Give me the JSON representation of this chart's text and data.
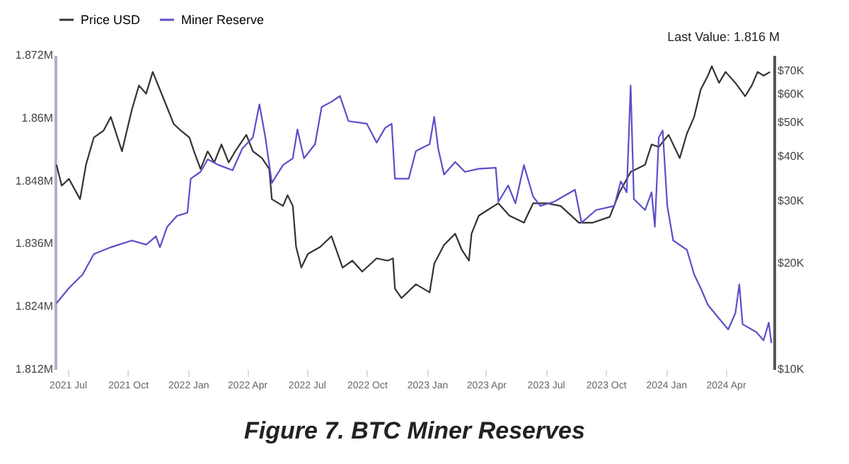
{
  "chart_data": {
    "type": "line",
    "title": "Figure 7. BTC Miner Reserves",
    "annotations": [
      "Last Value: 1.816 M"
    ],
    "legend": "top",
    "marker": "none",
    "line_style": "solid",
    "log": "y2",
    "xlim": [
      "2021-06-12",
      "2024-06-14"
    ],
    "xticks": [
      {
        "value": "2021-07-01",
        "label": "2021 Jul"
      },
      {
        "value": "2021-10-01",
        "label": "2021 Oct"
      },
      {
        "value": "2022-01-01",
        "label": "2022 Jan"
      },
      {
        "value": "2022-04-01",
        "label": "2022 Apr"
      },
      {
        "value": "2022-07-01",
        "label": "2022 Jul"
      },
      {
        "value": "2022-10-01",
        "label": "2022 Oct"
      },
      {
        "value": "2023-01-01",
        "label": "2023 Jan"
      },
      {
        "value": "2023-04-01",
        "label": "2023 Apr"
      },
      {
        "value": "2023-07-01",
        "label": "2023 Jul"
      },
      {
        "value": "2023-10-01",
        "label": "2023 Oct"
      },
      {
        "value": "2024-01-01",
        "label": "2024 Jan"
      },
      {
        "value": "2024-04-01",
        "label": "2024 Apr"
      }
    ],
    "ylim": [
      1.812,
      1.872
    ],
    "yticks": [
      {
        "value": 1.812,
        "label": "1.812M"
      },
      {
        "value": 1.824,
        "label": "1.824M"
      },
      {
        "value": 1.836,
        "label": "1.836M"
      },
      {
        "value": 1.848,
        "label": "1.848M"
      },
      {
        "value": 1.86,
        "label": "1.86M"
      },
      {
        "value": 1.872,
        "label": "1.872M"
      }
    ],
    "y2lim": [
      10000,
      77500
    ],
    "y2ticks": [
      {
        "value": 10000,
        "label": "$10K"
      },
      {
        "value": 20000,
        "label": "$20K"
      },
      {
        "value": 30000,
        "label": "$30K"
      },
      {
        "value": 40000,
        "label": "$40K"
      },
      {
        "value": 50000,
        "label": "$50K"
      },
      {
        "value": 60000,
        "label": "$60K"
      },
      {
        "value": 70000,
        "label": "$70K"
      }
    ],
    "series": [
      {
        "name": "Price USD",
        "color": "#333333",
        "axis": "y2",
        "x": [
          "2021-06-14",
          "2021-06-22",
          "2021-07-03",
          "2021-07-20",
          "2021-07-29",
          "2021-08-10",
          "2021-08-25",
          "2021-09-05",
          "2021-09-22",
          "2021-10-07",
          "2021-10-18",
          "2021-10-29",
          "2021-11-08",
          "2021-11-19",
          "2021-11-30",
          "2021-12-10",
          "2021-12-21",
          "2022-01-03",
          "2022-01-10",
          "2022-01-20",
          "2022-01-31",
          "2022-02-10",
          "2022-02-21",
          "2022-03-04",
          "2022-03-14",
          "2022-03-31",
          "2022-04-10",
          "2022-04-24",
          "2022-05-05",
          "2022-05-09",
          "2022-05-26",
          "2022-06-02",
          "2022-06-10",
          "2022-06-15",
          "2022-06-23",
          "2022-07-03",
          "2022-07-22",
          "2022-08-08",
          "2022-08-25",
          "2022-09-09",
          "2022-09-24",
          "2022-10-16",
          "2022-11-02",
          "2022-11-10",
          "2022-11-13",
          "2022-11-23",
          "2022-12-15",
          "2023-01-05",
          "2023-01-12",
          "2023-01-27",
          "2023-02-13",
          "2023-02-23",
          "2023-03-06",
          "2023-03-10",
          "2023-03-21",
          "2023-04-03",
          "2023-04-20",
          "2023-05-07",
          "2023-05-29",
          "2023-06-12",
          "2023-07-03",
          "2023-07-24",
          "2023-08-21",
          "2023-09-11",
          "2023-10-07",
          "2023-10-22",
          "2023-11-08",
          "2023-11-30",
          "2023-12-10",
          "2023-12-21",
          "2024-01-05",
          "2024-01-22",
          "2024-02-02",
          "2024-02-13",
          "2024-02-23",
          "2024-03-05",
          "2024-03-11",
          "2024-03-22",
          "2024-04-01",
          "2024-04-16",
          "2024-05-01",
          "2024-05-11",
          "2024-05-20",
          "2024-05-29",
          "2024-06-08"
        ],
        "values": [
          37900,
          33100,
          34600,
          30300,
          37900,
          45300,
          47400,
          51800,
          41400,
          54200,
          63600,
          60300,
          69500,
          61900,
          55100,
          49500,
          47400,
          45300,
          41400,
          36900,
          41400,
          38500,
          43300,
          38500,
          41400,
          46100,
          41400,
          39600,
          36900,
          30300,
          29000,
          31100,
          29000,
          22200,
          19400,
          21200,
          22200,
          23800,
          19400,
          20300,
          18900,
          20600,
          20300,
          20600,
          16900,
          15900,
          17400,
          16500,
          19900,
          22500,
          24200,
          21800,
          20300,
          24200,
          27200,
          28200,
          29500,
          27200,
          26000,
          29500,
          29500,
          29000,
          26000,
          26000,
          27000,
          31700,
          36200,
          37900,
          43300,
          42600,
          46100,
          39600,
          46500,
          51800,
          61900,
          67800,
          72100,
          64700,
          69500,
          64700,
          59300,
          63600,
          69500,
          67800,
          69500
        ]
      },
      {
        "name": "Miner Reserve",
        "color": "#5a50c8",
        "axis": "y",
        "x": [
          "2021-06-14",
          "2021-07-03",
          "2021-07-24",
          "2021-08-10",
          "2021-09-05",
          "2021-10-07",
          "2021-10-29",
          "2021-11-13",
          "2021-11-19",
          "2021-11-30",
          "2021-12-15",
          "2021-12-31",
          "2022-01-05",
          "2022-01-20",
          "2022-01-31",
          "2022-02-17",
          "2022-03-10",
          "2022-03-25",
          "2022-04-10",
          "2022-04-20",
          "2022-04-29",
          "2022-05-09",
          "2022-05-26",
          "2022-06-10",
          "2022-06-17",
          "2022-06-27",
          "2022-07-14",
          "2022-07-24",
          "2022-08-08",
          "2022-08-21",
          "2022-09-03",
          "2022-10-01",
          "2022-10-16",
          "2022-10-29",
          "2022-11-08",
          "2022-11-13",
          "2022-12-04",
          "2022-12-15",
          "2023-01-05",
          "2023-01-12",
          "2023-01-18",
          "2023-01-27",
          "2023-02-13",
          "2023-02-28",
          "2023-03-21",
          "2023-04-16",
          "2023-04-20",
          "2023-05-05",
          "2023-05-16",
          "2023-05-29",
          "2023-06-12",
          "2023-06-23",
          "2023-07-14",
          "2023-08-15",
          "2023-08-25",
          "2023-09-16",
          "2023-10-14",
          "2023-10-24",
          "2023-11-02",
          "2023-11-08",
          "2023-11-13",
          "2023-11-30",
          "2023-12-10",
          "2023-12-15",
          "2023-12-21",
          "2023-12-27",
          "2024-01-03",
          "2024-01-12",
          "2024-02-02",
          "2024-02-13",
          "2024-02-23",
          "2024-03-05",
          "2024-03-22",
          "2024-04-05",
          "2024-04-16",
          "2024-04-22",
          "2024-04-27",
          "2024-05-18",
          "2024-05-29",
          "2024-06-06",
          "2024-06-10"
        ],
        "values": [
          1.8246,
          1.8275,
          1.8301,
          1.834,
          1.8353,
          1.8366,
          1.8358,
          1.8374,
          1.8353,
          1.8392,
          1.8413,
          1.8419,
          1.8484,
          1.8497,
          1.8521,
          1.851,
          1.85,
          1.8542,
          1.8563,
          1.8626,
          1.8563,
          1.8476,
          1.851,
          1.8523,
          1.8578,
          1.8523,
          1.855,
          1.8621,
          1.8631,
          1.8642,
          1.8594,
          1.8589,
          1.8553,
          1.8581,
          1.8589,
          1.8484,
          1.8484,
          1.8537,
          1.855,
          1.8602,
          1.8542,
          1.8492,
          1.8516,
          1.8497,
          1.8503,
          1.8505,
          1.844,
          1.8471,
          1.8437,
          1.851,
          1.845,
          1.8432,
          1.844,
          1.8463,
          1.84,
          1.8424,
          1.8432,
          1.8479,
          1.8458,
          1.8662,
          1.8445,
          1.8424,
          1.8458,
          1.8392,
          1.8563,
          1.8576,
          1.8432,
          1.8366,
          1.8348,
          1.8301,
          1.8275,
          1.8243,
          1.8217,
          1.8196,
          1.8227,
          1.8282,
          1.8206,
          1.8191,
          1.8175,
          1.8209,
          1.817
        ]
      }
    ]
  }
}
